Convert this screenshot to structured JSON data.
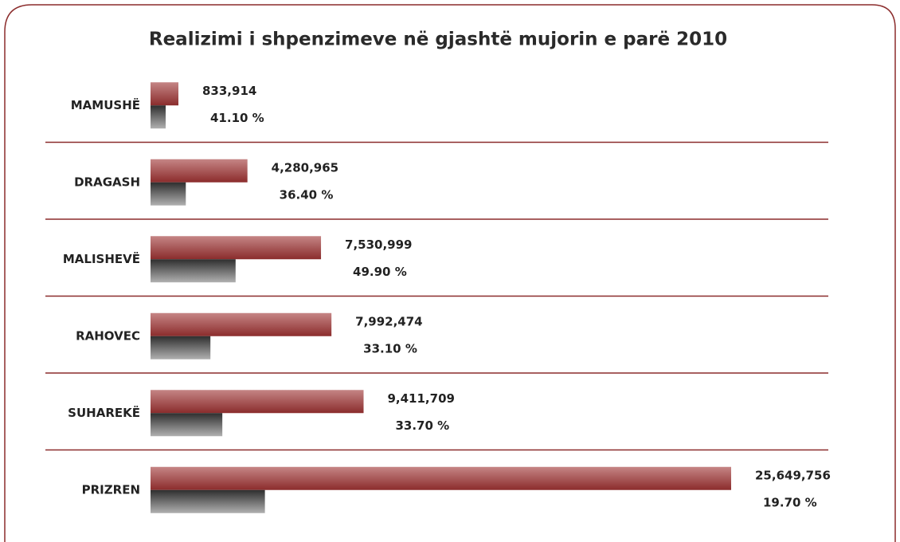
{
  "chart_data": {
    "type": "bar",
    "orientation": "horizontal",
    "title": "Realizimi i shpenzimeve në gjashtë mujorin e parë 2010",
    "categories": [
      "MAMUSHË",
      "DRAGASH",
      "MALISHEVË",
      "RAHOVEC",
      "SUHAREKË",
      "PRIZREN"
    ],
    "series": [
      {
        "color": "#8b2c2c",
        "values": [
          833914,
          4280965,
          7530999,
          7992474,
          9411709,
          25649756
        ],
        "value_labels": [
          "833,914",
          "4,280,965",
          "7,530,999",
          "7,992,474",
          "9,411,709",
          "25,649,756"
        ]
      },
      {
        "color": "#444444",
        "values": [
          41.1,
          36.4,
          49.9,
          33.1,
          33.7,
          19.7
        ],
        "value_labels": [
          "41.10 %",
          "36.40 %",
          "49.90 %",
          "33.10 %",
          "33.70 %",
          "19.70 %"
        ]
      }
    ]
  }
}
